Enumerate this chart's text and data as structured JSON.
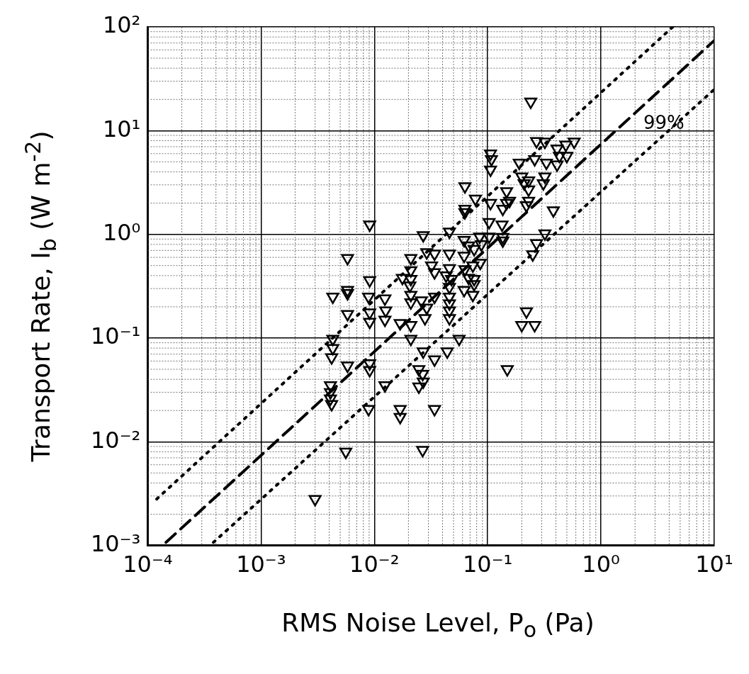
{
  "chart_data": {
    "type": "scatter",
    "xlabel": "RMS Noise Level, P$_{o}$ (Pa)",
    "ylabel": "Transport Rate, I$_{b}$ (W m$^{-2}$)",
    "xlim": [
      0.0001,
      10
    ],
    "ylim": [
      0.001,
      100
    ],
    "log": "xy",
    "grid": true,
    "legend": false,
    "marker": "triangle",
    "xticks": [
      {
        "value": 0.0001,
        "label": "10⁻⁴"
      },
      {
        "value": 0.001,
        "label": "10⁻³"
      },
      {
        "value": 0.01,
        "label": "10⁻²"
      },
      {
        "value": 0.1,
        "label": "10⁻¹"
      },
      {
        "value": 1,
        "label": "10⁰"
      },
      {
        "value": 10,
        "label": "10¹"
      }
    ],
    "yticks": [
      {
        "value": 0.001,
        "label": "10⁻³"
      },
      {
        "value": 0.01,
        "label": "10⁻²"
      },
      {
        "value": 0.1,
        "label": "10⁻¹"
      },
      {
        "value": 1,
        "label": "10⁰"
      },
      {
        "value": 10,
        "label": "10¹"
      },
      {
        "value": 100,
        "label": "10²"
      }
    ],
    "annotations": [
      "99%"
    ],
    "series": [
      {
        "color": "#000000",
        "x": [
          0.24,
          0.27,
          0.32,
          0.41,
          0.49,
          0.58,
          0.106,
          0.108,
          0.106,
          0.19,
          0.26,
          0.33,
          0.43,
          0.5,
          0.41,
          0.2,
          0.23,
          0.32,
          0.21,
          0.31,
          0.23,
          0.23,
          0.22,
          0.063,
          0.078,
          0.063,
          0.063,
          0.106,
          0.147,
          0.147,
          0.156,
          0.136,
          0.38,
          0.0091,
          0.103,
          0.134,
          0.027,
          0.046,
          0.062,
          0.085,
          0.103,
          0.136,
          0.136,
          0.32,
          0.27,
          0.25,
          0.068,
          0.076,
          0.088,
          0.086,
          0.0058,
          0.021,
          0.029,
          0.034,
          0.046,
          0.062,
          0.063,
          0.074,
          0.032,
          0.034,
          0.046,
          0.043,
          0.048,
          0.021,
          0.0177,
          0.021,
          0.0206,
          0.0091,
          0.0058,
          0.068,
          0.076,
          0.062,
          0.0043,
          0.0058,
          0.0089,
          0.0124,
          0.021,
          0.021,
          0.026,
          0.029,
          0.028,
          0.034,
          0.046,
          0.046,
          0.046,
          0.046,
          0.046,
          0.0058,
          0.0091,
          0.0091,
          0.0126,
          0.0124,
          0.0169,
          0.021,
          0.021,
          0.0043,
          0.0043,
          0.0042,
          0.0058,
          0.0091,
          0.0091,
          0.0124,
          0.027,
          0.034,
          0.044,
          0.0247,
          0.0267,
          0.027,
          0.0247,
          0.0041,
          0.0041,
          0.0041,
          0.0042,
          0.0089,
          0.0169,
          0.0169,
          0.034,
          0.0056,
          0.0267,
          0.003,
          0.149,
          0.22,
          0.2,
          0.26,
          0.056,
          0.076,
          0.074
        ],
        "values": [
          19,
          7.9,
          7.8,
          6.7,
          7.3,
          7.8,
          6.0,
          5.3,
          4.2,
          4.9,
          5.3,
          4.9,
          5.7,
          5.7,
          4.7,
          3.6,
          3.3,
          3.6,
          3.1,
          3.1,
          2.7,
          2.1,
          1.9,
          2.9,
          2.2,
          1.76,
          1.63,
          2.0,
          2.6,
          2.0,
          2.1,
          1.76,
          1.7,
          1.24,
          1.31,
          1.24,
          0.98,
          1.06,
          0.88,
          0.95,
          0.95,
          0.94,
          0.87,
          1.02,
          0.82,
          0.64,
          0.78,
          0.72,
          0.8,
          0.53,
          0.59,
          0.59,
          0.67,
          0.65,
          0.65,
          0.62,
          0.46,
          0.5,
          0.5,
          0.43,
          0.47,
          0.4,
          0.37,
          0.45,
          0.38,
          0.37,
          0.32,
          0.36,
          0.29,
          0.38,
          0.37,
          0.29,
          0.25,
          0.27,
          0.25,
          0.24,
          0.26,
          0.22,
          0.23,
          0.196,
          0.155,
          0.25,
          0.31,
          0.25,
          0.215,
          0.184,
          0.155,
          0.17,
          0.176,
          0.143,
          0.184,
          0.15,
          0.139,
          0.133,
          0.098,
          0.098,
          0.08,
          0.065,
          0.054,
          0.057,
          0.049,
          0.035,
          0.074,
          0.062,
          0.074,
          0.05,
          0.045,
          0.038,
          0.034,
          0.035,
          0.03,
          0.026,
          0.023,
          0.0206,
          0.0206,
          0.0173,
          0.0206,
          0.008,
          0.0083,
          0.0028,
          0.05,
          0.18,
          0.133,
          0.133,
          0.098,
          0.33,
          0.26
        ]
      },
      {
        "type": "line",
        "color": "#000000",
        "line_style": "dotted",
        "marker": "none",
        "x": [
          0.00012,
          4.3
        ],
        "values": [
          0.0028,
          100
        ]
      },
      {
        "type": "line",
        "color": "#000000",
        "line_style": "dashed",
        "marker": "none",
        "x": [
          0.000145,
          10
        ],
        "values": [
          0.00107,
          74
        ]
      },
      {
        "type": "line",
        "color": "#000000",
        "line_style": "dotted",
        "marker": "none",
        "x": [
          0.00038,
          10
        ],
        "values": [
          0.00107,
          25
        ]
      }
    ]
  }
}
